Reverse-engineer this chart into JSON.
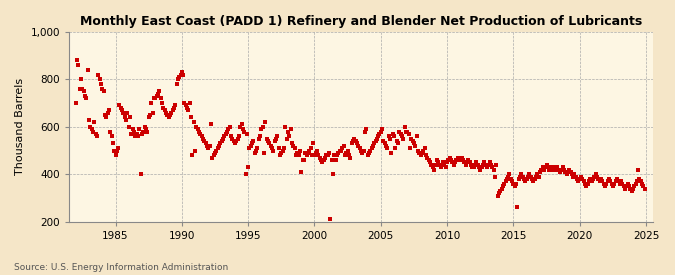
{
  "title": "Monthly East Coast (PADD 1) Refinery and Blender Net Production of Lubricants",
  "ylabel": "Thousand Barrels",
  "source": "Source: U.S. Energy Information Administration",
  "bg_color": "#f5e6c8",
  "plot_bg_color": "#fdf6e3",
  "dot_color": "#cc0000",
  "grid_color": "#aaaaaa",
  "xlim": [
    1981.5,
    2025.5
  ],
  "ylim": [
    200,
    1000
  ],
  "yticks": [
    200,
    400,
    600,
    800,
    1000
  ],
  "xticks": [
    1985,
    1990,
    1995,
    2000,
    2005,
    2010,
    2015,
    2020,
    2025
  ],
  "data": [
    [
      1982.0,
      700
    ],
    [
      1982.1,
      880
    ],
    [
      1982.2,
      860
    ],
    [
      1982.3,
      760
    ],
    [
      1982.4,
      800
    ],
    [
      1982.5,
      760
    ],
    [
      1982.6,
      750
    ],
    [
      1982.7,
      730
    ],
    [
      1982.8,
      720
    ],
    [
      1982.9,
      840
    ],
    [
      1983.0,
      630
    ],
    [
      1983.1,
      600
    ],
    [
      1983.2,
      590
    ],
    [
      1983.3,
      580
    ],
    [
      1983.4,
      620
    ],
    [
      1983.5,
      570
    ],
    [
      1983.6,
      560
    ],
    [
      1983.7,
      820
    ],
    [
      1983.8,
      800
    ],
    [
      1983.9,
      780
    ],
    [
      1984.0,
      760
    ],
    [
      1984.1,
      750
    ],
    [
      1984.2,
      650
    ],
    [
      1984.3,
      640
    ],
    [
      1984.4,
      660
    ],
    [
      1984.5,
      670
    ],
    [
      1984.6,
      580
    ],
    [
      1984.7,
      560
    ],
    [
      1984.8,
      530
    ],
    [
      1984.9,
      500
    ],
    [
      1985.0,
      480
    ],
    [
      1985.1,
      500
    ],
    [
      1985.2,
      510
    ],
    [
      1985.3,
      690
    ],
    [
      1985.4,
      680
    ],
    [
      1985.5,
      670
    ],
    [
      1985.6,
      660
    ],
    [
      1985.7,
      640
    ],
    [
      1985.8,
      630
    ],
    [
      1985.9,
      660
    ],
    [
      1986.0,
      600
    ],
    [
      1986.1,
      640
    ],
    [
      1986.2,
      570
    ],
    [
      1986.3,
      590
    ],
    [
      1986.4,
      580
    ],
    [
      1986.5,
      560
    ],
    [
      1986.6,
      570
    ],
    [
      1986.7,
      560
    ],
    [
      1986.8,
      590
    ],
    [
      1986.9,
      400
    ],
    [
      1987.0,
      570
    ],
    [
      1987.1,
      580
    ],
    [
      1987.2,
      600
    ],
    [
      1987.3,
      590
    ],
    [
      1987.4,
      580
    ],
    [
      1987.5,
      640
    ],
    [
      1987.6,
      650
    ],
    [
      1987.7,
      700
    ],
    [
      1987.8,
      660
    ],
    [
      1987.9,
      720
    ],
    [
      1988.0,
      720
    ],
    [
      1988.1,
      730
    ],
    [
      1988.2,
      740
    ],
    [
      1988.3,
      750
    ],
    [
      1988.4,
      720
    ],
    [
      1988.5,
      700
    ],
    [
      1988.6,
      680
    ],
    [
      1988.7,
      670
    ],
    [
      1988.8,
      660
    ],
    [
      1988.9,
      650
    ],
    [
      1989.0,
      640
    ],
    [
      1989.1,
      650
    ],
    [
      1989.2,
      660
    ],
    [
      1989.3,
      670
    ],
    [
      1989.4,
      680
    ],
    [
      1989.5,
      690
    ],
    [
      1989.6,
      780
    ],
    [
      1989.7,
      800
    ],
    [
      1989.8,
      810
    ],
    [
      1989.9,
      820
    ],
    [
      1990.0,
      830
    ],
    [
      1990.1,
      820
    ],
    [
      1990.2,
      700
    ],
    [
      1990.3,
      690
    ],
    [
      1990.4,
      680
    ],
    [
      1990.5,
      670
    ],
    [
      1990.6,
      700
    ],
    [
      1990.7,
      640
    ],
    [
      1990.8,
      480
    ],
    [
      1990.9,
      620
    ],
    [
      1991.0,
      500
    ],
    [
      1991.1,
      600
    ],
    [
      1991.2,
      590
    ],
    [
      1991.3,
      580
    ],
    [
      1991.4,
      570
    ],
    [
      1991.5,
      560
    ],
    [
      1991.6,
      550
    ],
    [
      1991.7,
      540
    ],
    [
      1991.8,
      530
    ],
    [
      1991.9,
      520
    ],
    [
      1992.0,
      510
    ],
    [
      1992.1,
      520
    ],
    [
      1992.2,
      610
    ],
    [
      1992.3,
      470
    ],
    [
      1992.4,
      480
    ],
    [
      1992.5,
      490
    ],
    [
      1992.6,
      500
    ],
    [
      1992.7,
      510
    ],
    [
      1992.8,
      520
    ],
    [
      1992.9,
      530
    ],
    [
      1993.0,
      540
    ],
    [
      1993.1,
      550
    ],
    [
      1993.2,
      560
    ],
    [
      1993.3,
      570
    ],
    [
      1993.4,
      580
    ],
    [
      1993.5,
      590
    ],
    [
      1993.6,
      600
    ],
    [
      1993.7,
      560
    ],
    [
      1993.8,
      550
    ],
    [
      1993.9,
      540
    ],
    [
      1994.0,
      530
    ],
    [
      1994.1,
      540
    ],
    [
      1994.2,
      550
    ],
    [
      1994.3,
      560
    ],
    [
      1994.4,
      600
    ],
    [
      1994.5,
      610
    ],
    [
      1994.6,
      590
    ],
    [
      1994.7,
      580
    ],
    [
      1994.8,
      400
    ],
    [
      1994.9,
      570
    ],
    [
      1995.0,
      430
    ],
    [
      1995.1,
      510
    ],
    [
      1995.2,
      520
    ],
    [
      1995.3,
      530
    ],
    [
      1995.4,
      540
    ],
    [
      1995.5,
      490
    ],
    [
      1995.6,
      500
    ],
    [
      1995.7,
      510
    ],
    [
      1995.8,
      550
    ],
    [
      1995.9,
      560
    ],
    [
      1996.0,
      590
    ],
    [
      1996.1,
      600
    ],
    [
      1996.2,
      490
    ],
    [
      1996.3,
      620
    ],
    [
      1996.4,
      550
    ],
    [
      1996.5,
      540
    ],
    [
      1996.6,
      530
    ],
    [
      1996.7,
      520
    ],
    [
      1996.8,
      510
    ],
    [
      1996.9,
      500
    ],
    [
      1997.0,
      540
    ],
    [
      1997.1,
      550
    ],
    [
      1997.2,
      560
    ],
    [
      1997.3,
      510
    ],
    [
      1997.4,
      480
    ],
    [
      1997.5,
      490
    ],
    [
      1997.6,
      500
    ],
    [
      1997.7,
      510
    ],
    [
      1997.8,
      600
    ],
    [
      1997.9,
      550
    ],
    [
      1998.0,
      580
    ],
    [
      1998.1,
      560
    ],
    [
      1998.2,
      590
    ],
    [
      1998.3,
      530
    ],
    [
      1998.4,
      520
    ],
    [
      1998.5,
      510
    ],
    [
      1998.6,
      480
    ],
    [
      1998.7,
      490
    ],
    [
      1998.8,
      480
    ],
    [
      1998.9,
      500
    ],
    [
      1999.0,
      410
    ],
    [
      1999.1,
      460
    ],
    [
      1999.2,
      460
    ],
    [
      1999.3,
      490
    ],
    [
      1999.4,
      480
    ],
    [
      1999.5,
      490
    ],
    [
      1999.6,
      500
    ],
    [
      1999.7,
      510
    ],
    [
      1999.8,
      480
    ],
    [
      1999.9,
      530
    ],
    [
      2000.0,
      480
    ],
    [
      2000.1,
      490
    ],
    [
      2000.2,
      500
    ],
    [
      2000.3,
      480
    ],
    [
      2000.4,
      470
    ],
    [
      2000.5,
      460
    ],
    [
      2000.6,
      450
    ],
    [
      2000.7,
      460
    ],
    [
      2000.8,
      470
    ],
    [
      2000.9,
      480
    ],
    [
      2001.0,
      480
    ],
    [
      2001.1,
      490
    ],
    [
      2001.2,
      210
    ],
    [
      2001.3,
      460
    ],
    [
      2001.4,
      400
    ],
    [
      2001.5,
      480
    ],
    [
      2001.6,
      460
    ],
    [
      2001.7,
      480
    ],
    [
      2001.8,
      490
    ],
    [
      2001.9,
      500
    ],
    [
      2002.0,
      500
    ],
    [
      2002.1,
      510
    ],
    [
      2002.2,
      520
    ],
    [
      2002.3,
      480
    ],
    [
      2002.4,
      490
    ],
    [
      2002.5,
      500
    ],
    [
      2002.6,
      480
    ],
    [
      2002.7,
      470
    ],
    [
      2002.8,
      530
    ],
    [
      2002.9,
      540
    ],
    [
      2003.0,
      550
    ],
    [
      2003.1,
      540
    ],
    [
      2003.2,
      530
    ],
    [
      2003.3,
      520
    ],
    [
      2003.4,
      510
    ],
    [
      2003.5,
      500
    ],
    [
      2003.6,
      490
    ],
    [
      2003.7,
      500
    ],
    [
      2003.8,
      580
    ],
    [
      2003.9,
      590
    ],
    [
      2004.0,
      480
    ],
    [
      2004.1,
      490
    ],
    [
      2004.2,
      500
    ],
    [
      2004.3,
      510
    ],
    [
      2004.4,
      520
    ],
    [
      2004.5,
      530
    ],
    [
      2004.6,
      540
    ],
    [
      2004.7,
      550
    ],
    [
      2004.8,
      560
    ],
    [
      2004.9,
      570
    ],
    [
      2005.0,
      580
    ],
    [
      2005.1,
      590
    ],
    [
      2005.2,
      540
    ],
    [
      2005.3,
      530
    ],
    [
      2005.4,
      520
    ],
    [
      2005.5,
      510
    ],
    [
      2005.6,
      560
    ],
    [
      2005.7,
      550
    ],
    [
      2005.8,
      490
    ],
    [
      2005.9,
      570
    ],
    [
      2006.0,
      560
    ],
    [
      2006.1,
      510
    ],
    [
      2006.2,
      540
    ],
    [
      2006.3,
      530
    ],
    [
      2006.4,
      580
    ],
    [
      2006.5,
      570
    ],
    [
      2006.6,
      560
    ],
    [
      2006.7,
      550
    ],
    [
      2006.8,
      600
    ],
    [
      2006.9,
      580
    ],
    [
      2007.0,
      580
    ],
    [
      2007.1,
      570
    ],
    [
      2007.2,
      510
    ],
    [
      2007.3,
      550
    ],
    [
      2007.4,
      540
    ],
    [
      2007.5,
      530
    ],
    [
      2007.6,
      520
    ],
    [
      2007.7,
      560
    ],
    [
      2007.8,
      500
    ],
    [
      2007.9,
      490
    ],
    [
      2008.0,
      480
    ],
    [
      2008.1,
      490
    ],
    [
      2008.2,
      500
    ],
    [
      2008.3,
      510
    ],
    [
      2008.4,
      480
    ],
    [
      2008.5,
      470
    ],
    [
      2008.6,
      460
    ],
    [
      2008.7,
      450
    ],
    [
      2008.8,
      440
    ],
    [
      2008.9,
      430
    ],
    [
      2009.0,
      420
    ],
    [
      2009.1,
      440
    ],
    [
      2009.2,
      460
    ],
    [
      2009.3,
      450
    ],
    [
      2009.4,
      440
    ],
    [
      2009.5,
      430
    ],
    [
      2009.6,
      440
    ],
    [
      2009.7,
      450
    ],
    [
      2009.8,
      440
    ],
    [
      2009.9,
      430
    ],
    [
      2010.0,
      450
    ],
    [
      2010.1,
      460
    ],
    [
      2010.2,
      470
    ],
    [
      2010.3,
      460
    ],
    [
      2010.4,
      450
    ],
    [
      2010.5,
      440
    ],
    [
      2010.6,
      450
    ],
    [
      2010.7,
      460
    ],
    [
      2010.8,
      470
    ],
    [
      2010.9,
      460
    ],
    [
      2011.0,
      460
    ],
    [
      2011.1,
      470
    ],
    [
      2011.2,
      460
    ],
    [
      2011.3,
      450
    ],
    [
      2011.4,
      440
    ],
    [
      2011.5,
      450
    ],
    [
      2011.6,
      460
    ],
    [
      2011.7,
      450
    ],
    [
      2011.8,
      440
    ],
    [
      2011.9,
      430
    ],
    [
      2012.0,
      430
    ],
    [
      2012.1,
      440
    ],
    [
      2012.2,
      450
    ],
    [
      2012.3,
      440
    ],
    [
      2012.4,
      430
    ],
    [
      2012.5,
      420
    ],
    [
      2012.6,
      430
    ],
    [
      2012.7,
      440
    ],
    [
      2012.8,
      450
    ],
    [
      2012.9,
      440
    ],
    [
      2013.0,
      430
    ],
    [
      2013.1,
      440
    ],
    [
      2013.2,
      450
    ],
    [
      2013.3,
      440
    ],
    [
      2013.4,
      430
    ],
    [
      2013.5,
      420
    ],
    [
      2013.6,
      390
    ],
    [
      2013.7,
      440
    ],
    [
      2013.8,
      310
    ],
    [
      2013.9,
      320
    ],
    [
      2014.0,
      330
    ],
    [
      2014.1,
      340
    ],
    [
      2014.2,
      350
    ],
    [
      2014.3,
      360
    ],
    [
      2014.4,
      370
    ],
    [
      2014.5,
      380
    ],
    [
      2014.6,
      390
    ],
    [
      2014.7,
      400
    ],
    [
      2014.8,
      380
    ],
    [
      2014.9,
      370
    ],
    [
      2015.0,
      360
    ],
    [
      2015.1,
      350
    ],
    [
      2015.2,
      360
    ],
    [
      2015.3,
      260
    ],
    [
      2015.4,
      380
    ],
    [
      2015.5,
      390
    ],
    [
      2015.6,
      400
    ],
    [
      2015.7,
      390
    ],
    [
      2015.8,
      380
    ],
    [
      2015.9,
      370
    ],
    [
      2016.0,
      380
    ],
    [
      2016.1,
      390
    ],
    [
      2016.2,
      400
    ],
    [
      2016.3,
      390
    ],
    [
      2016.4,
      380
    ],
    [
      2016.5,
      370
    ],
    [
      2016.6,
      380
    ],
    [
      2016.7,
      390
    ],
    [
      2016.8,
      400
    ],
    [
      2016.9,
      390
    ],
    [
      2017.0,
      410
    ],
    [
      2017.1,
      420
    ],
    [
      2017.2,
      430
    ],
    [
      2017.3,
      420
    ],
    [
      2017.4,
      430
    ],
    [
      2017.5,
      440
    ],
    [
      2017.6,
      430
    ],
    [
      2017.7,
      420
    ],
    [
      2017.8,
      430
    ],
    [
      2017.9,
      420
    ],
    [
      2018.0,
      420
    ],
    [
      2018.1,
      430
    ],
    [
      2018.2,
      420
    ],
    [
      2018.3,
      430
    ],
    [
      2018.4,
      420
    ],
    [
      2018.5,
      410
    ],
    [
      2018.6,
      420
    ],
    [
      2018.7,
      430
    ],
    [
      2018.8,
      420
    ],
    [
      2018.9,
      410
    ],
    [
      2019.0,
      400
    ],
    [
      2019.1,
      410
    ],
    [
      2019.2,
      420
    ],
    [
      2019.3,
      410
    ],
    [
      2019.4,
      400
    ],
    [
      2019.5,
      390
    ],
    [
      2019.6,
      400
    ],
    [
      2019.7,
      390
    ],
    [
      2019.8,
      380
    ],
    [
      2019.9,
      370
    ],
    [
      2020.0,
      380
    ],
    [
      2020.1,
      390
    ],
    [
      2020.2,
      380
    ],
    [
      2020.3,
      370
    ],
    [
      2020.4,
      360
    ],
    [
      2020.5,
      350
    ],
    [
      2020.6,
      360
    ],
    [
      2020.7,
      370
    ],
    [
      2020.8,
      380
    ],
    [
      2020.9,
      370
    ],
    [
      2021.0,
      380
    ],
    [
      2021.1,
      390
    ],
    [
      2021.2,
      400
    ],
    [
      2021.3,
      390
    ],
    [
      2021.4,
      380
    ],
    [
      2021.5,
      370
    ],
    [
      2021.6,
      380
    ],
    [
      2021.7,
      370
    ],
    [
      2021.8,
      360
    ],
    [
      2021.9,
      350
    ],
    [
      2022.0,
      360
    ],
    [
      2022.1,
      370
    ],
    [
      2022.2,
      380
    ],
    [
      2022.3,
      370
    ],
    [
      2022.4,
      360
    ],
    [
      2022.5,
      350
    ],
    [
      2022.6,
      360
    ],
    [
      2022.7,
      370
    ],
    [
      2022.8,
      380
    ],
    [
      2022.9,
      370
    ],
    [
      2023.0,
      360
    ],
    [
      2023.1,
      370
    ],
    [
      2023.2,
      360
    ],
    [
      2023.3,
      350
    ],
    [
      2023.4,
      340
    ],
    [
      2023.5,
      350
    ],
    [
      2023.6,
      360
    ],
    [
      2023.7,
      350
    ],
    [
      2023.8,
      340
    ],
    [
      2023.9,
      330
    ],
    [
      2024.0,
      340
    ],
    [
      2024.1,
      350
    ],
    [
      2024.2,
      360
    ],
    [
      2024.3,
      370
    ],
    [
      2024.4,
      420
    ],
    [
      2024.5,
      380
    ],
    [
      2024.6,
      370
    ],
    [
      2024.7,
      360
    ],
    [
      2024.8,
      350
    ],
    [
      2024.9,
      340
    ]
  ]
}
